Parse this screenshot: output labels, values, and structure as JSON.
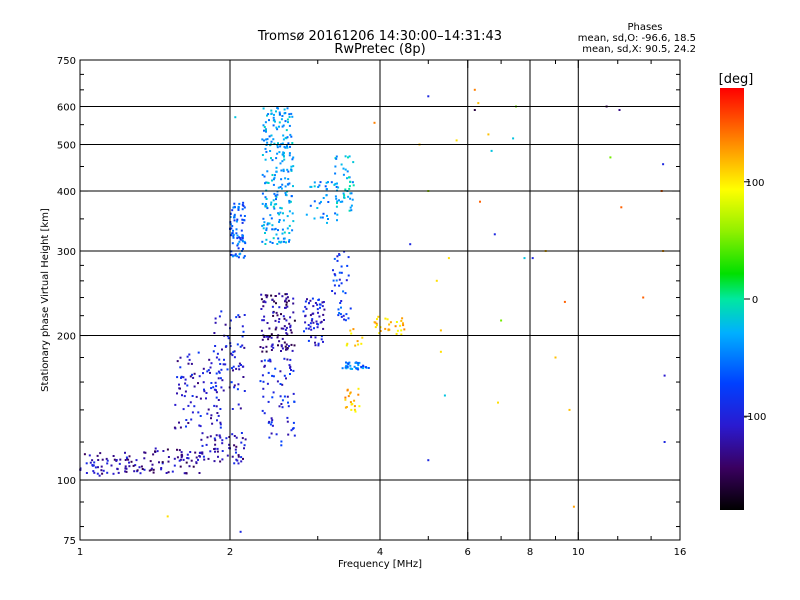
{
  "chart_data": {
    "type": "scatter",
    "title": "Tromsø 20161206 14:30:00–14:31:43",
    "subtitle": "RwPretec (8p)",
    "xlabel": "Frequency [MHz]",
    "ylabel": "Stationary phase Virtual Height [km]",
    "x_scale": "log",
    "y_scale": "log",
    "xlim": [
      1,
      16
    ],
    "ylim": [
      75,
      750
    ],
    "x_ticks": [
      {
        "value": 1,
        "label": "1"
      },
      {
        "value": 2,
        "label": "2"
      },
      {
        "value": 4,
        "label": "4"
      },
      {
        "value": 6,
        "label": "6"
      },
      {
        "value": 8,
        "label": "8"
      },
      {
        "value": 10,
        "label": "10"
      },
      {
        "value": 16,
        "label": "16"
      }
    ],
    "x_gridlines": [
      2,
      4,
      6,
      8,
      10
    ],
    "x_minor_ticks": [
      3,
      5,
      7,
      9,
      12,
      14
    ],
    "y_ticks": [
      {
        "value": 75,
        "label": "75"
      },
      {
        "value": 100,
        "label": "100"
      },
      {
        "value": 200,
        "label": "200"
      },
      {
        "value": 300,
        "label": "300"
      },
      {
        "value": 400,
        "label": "400"
      },
      {
        "value": 500,
        "label": "500"
      },
      {
        "value": 600,
        "label": "600"
      },
      {
        "value": 750,
        "label": "750"
      }
    ],
    "y_gridlines": [
      100,
      200,
      300,
      400,
      500,
      600
    ],
    "grid": true,
    "phase_stats": {
      "heading": "Phases",
      "line_o": "mean, sd,O: -96.6, 18.5",
      "line_x": "mean, sd,X:  90.5, 24.2"
    },
    "colorbar": {
      "label": "[deg]",
      "range": [
        -180,
        180
      ],
      "ticks": [
        {
          "value": 100,
          "label": "100"
        },
        {
          "value": 0,
          "label": "0"
        },
        {
          "value": -100,
          "label": "-100"
        }
      ]
    },
    "clusters": [
      {
        "x": [
          1.0,
          1.3
        ],
        "y": [
          102,
          114
        ],
        "phase": -130,
        "n": 60
      },
      {
        "x": [
          1.3,
          1.75
        ],
        "y": [
          103,
          117
        ],
        "phase": -135,
        "n": 70
      },
      {
        "x": [
          1.75,
          2.15
        ],
        "y": [
          108,
          126
        ],
        "phase": -125,
        "n": 60
      },
      {
        "x": [
          1.55,
          1.95
        ],
        "y": [
          128,
          185
        ],
        "phase": -120,
        "n": 90
      },
      {
        "x": [
          1.85,
          2.15
        ],
        "y": [
          140,
          225
        ],
        "phase": -115,
        "n": 70
      },
      {
        "x": [
          2.0,
          2.15
        ],
        "y": [
          290,
          380
        ],
        "phase": -80,
        "n": 80
      },
      {
        "x": [
          2.32,
          2.68
        ],
        "y": [
          310,
          600
        ],
        "phase": -55,
        "n": 230
      },
      {
        "x": [
          2.3,
          2.7
        ],
        "y": [
          185,
          245
        ],
        "phase": -140,
        "n": 110
      },
      {
        "x": [
          2.3,
          2.7
        ],
        "y": [
          118,
          180
        ],
        "phase": -110,
        "n": 70
      },
      {
        "x": [
          2.8,
          3.1
        ],
        "y": [
          190,
          240
        ],
        "phase": -115,
        "n": 60
      },
      {
        "x": [
          2.85,
          3.3
        ],
        "y": [
          340,
          420
        ],
        "phase": -60,
        "n": 40
      },
      {
        "x": [
          3.2,
          3.5
        ],
        "y": [
          215,
          300
        ],
        "phase": -95,
        "n": 40
      },
      {
        "x": [
          3.25,
          3.55
        ],
        "y": [
          360,
          480
        ],
        "phase": -45,
        "n": 45
      },
      {
        "x": [
          3.35,
          3.8
        ],
        "y": [
          170,
          176
        ],
        "phase": -70,
        "n": 40
      },
      {
        "x": [
          3.4,
          3.65
        ],
        "y": [
          135,
          155
        ],
        "phase": 120,
        "n": 20
      },
      {
        "x": [
          3.9,
          4.5
        ],
        "y": [
          200,
          220
        ],
        "phase": 115,
        "n": 30
      },
      {
        "x": [
          3.4,
          3.7
        ],
        "y": [
          190,
          208
        ],
        "phase": 110,
        "n": 10
      }
    ],
    "sparse_points": [
      {
        "x": 2.05,
        "y": 570,
        "phase": -40
      },
      {
        "x": 2.1,
        "y": 78,
        "phase": -110
      },
      {
        "x": 1.5,
        "y": 84,
        "phase": 110
      },
      {
        "x": 3.9,
        "y": 555,
        "phase": 140
      },
      {
        "x": 4.6,
        "y": 310,
        "phase": -110
      },
      {
        "x": 5.0,
        "y": 630,
        "phase": -110
      },
      {
        "x": 4.8,
        "y": 500,
        "phase": 120
      },
      {
        "x": 5.0,
        "y": 400,
        "phase": 60
      },
      {
        "x": 5.2,
        "y": 260,
        "phase": 110
      },
      {
        "x": 5.3,
        "y": 205,
        "phase": 120
      },
      {
        "x": 5.3,
        "y": 185,
        "phase": 110
      },
      {
        "x": 5.4,
        "y": 150,
        "phase": -40
      },
      {
        "x": 5.0,
        "y": 110,
        "phase": -110
      },
      {
        "x": 5.5,
        "y": 290,
        "phase": 110
      },
      {
        "x": 5.7,
        "y": 510,
        "phase": 110
      },
      {
        "x": 6.2,
        "y": 650,
        "phase": 140
      },
      {
        "x": 6.3,
        "y": 610,
        "phase": 120
      },
      {
        "x": 6.2,
        "y": 590,
        "phase": -160
      },
      {
        "x": 6.35,
        "y": 380,
        "phase": 150
      },
      {
        "x": 6.6,
        "y": 525,
        "phase": 120
      },
      {
        "x": 6.7,
        "y": 485,
        "phase": -40
      },
      {
        "x": 6.8,
        "y": 325,
        "phase": -110
      },
      {
        "x": 7.0,
        "y": 215,
        "phase": 40
      },
      {
        "x": 6.9,
        "y": 145,
        "phase": 110
      },
      {
        "x": 7.4,
        "y": 515,
        "phase": -40
      },
      {
        "x": 7.5,
        "y": 600,
        "phase": 40
      },
      {
        "x": 7.8,
        "y": 290,
        "phase": -40
      },
      {
        "x": 8.1,
        "y": 290,
        "phase": -110
      },
      {
        "x": 8.6,
        "y": 300,
        "phase": 120
      },
      {
        "x": 9.0,
        "y": 180,
        "phase": 120
      },
      {
        "x": 9.4,
        "y": 235,
        "phase": 150
      },
      {
        "x": 9.6,
        "y": 140,
        "phase": 120
      },
      {
        "x": 9.8,
        "y": 88,
        "phase": 130
      },
      {
        "x": 11.4,
        "y": 600,
        "phase": -150
      },
      {
        "x": 11.6,
        "y": 470,
        "phase": 40
      },
      {
        "x": 12.1,
        "y": 590,
        "phase": -140
      },
      {
        "x": 12.2,
        "y": 370,
        "phase": 150
      },
      {
        "x": 13.5,
        "y": 240,
        "phase": 150
      },
      {
        "x": 14.8,
        "y": 455,
        "phase": -110
      },
      {
        "x": 14.7,
        "y": 400,
        "phase": 150
      },
      {
        "x": 14.8,
        "y": 300,
        "phase": 130
      },
      {
        "x": 14.9,
        "y": 165,
        "phase": -120
      },
      {
        "x": 14.9,
        "y": 120,
        "phase": -110
      }
    ]
  }
}
